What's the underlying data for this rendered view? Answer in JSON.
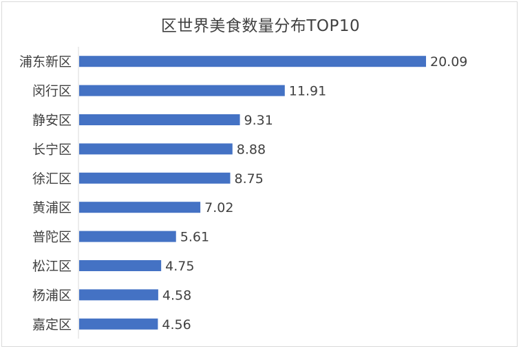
{
  "chart_data": {
    "type": "bar",
    "orientation": "horizontal",
    "title": "区世界美食数量分布TOP10",
    "categories": [
      "浦东新区",
      "闵行区",
      "静安区",
      "长宁区",
      "徐汇区",
      "黄浦区",
      "普陀区",
      "松江区",
      "杨浦区",
      "嘉定区"
    ],
    "values": [
      20.09,
      11.91,
      9.31,
      8.88,
      8.75,
      7.02,
      5.61,
      4.75,
      4.58,
      4.56
    ],
    "value_labels": [
      "20.09",
      "11.91",
      "9.31",
      "8.88",
      "8.75",
      "7.02",
      "5.61",
      "4.75",
      "4.58",
      "4.56"
    ],
    "xlabel": "",
    "ylabel": "",
    "grid": false,
    "legend": "none",
    "bar_color": "#4472c4"
  }
}
